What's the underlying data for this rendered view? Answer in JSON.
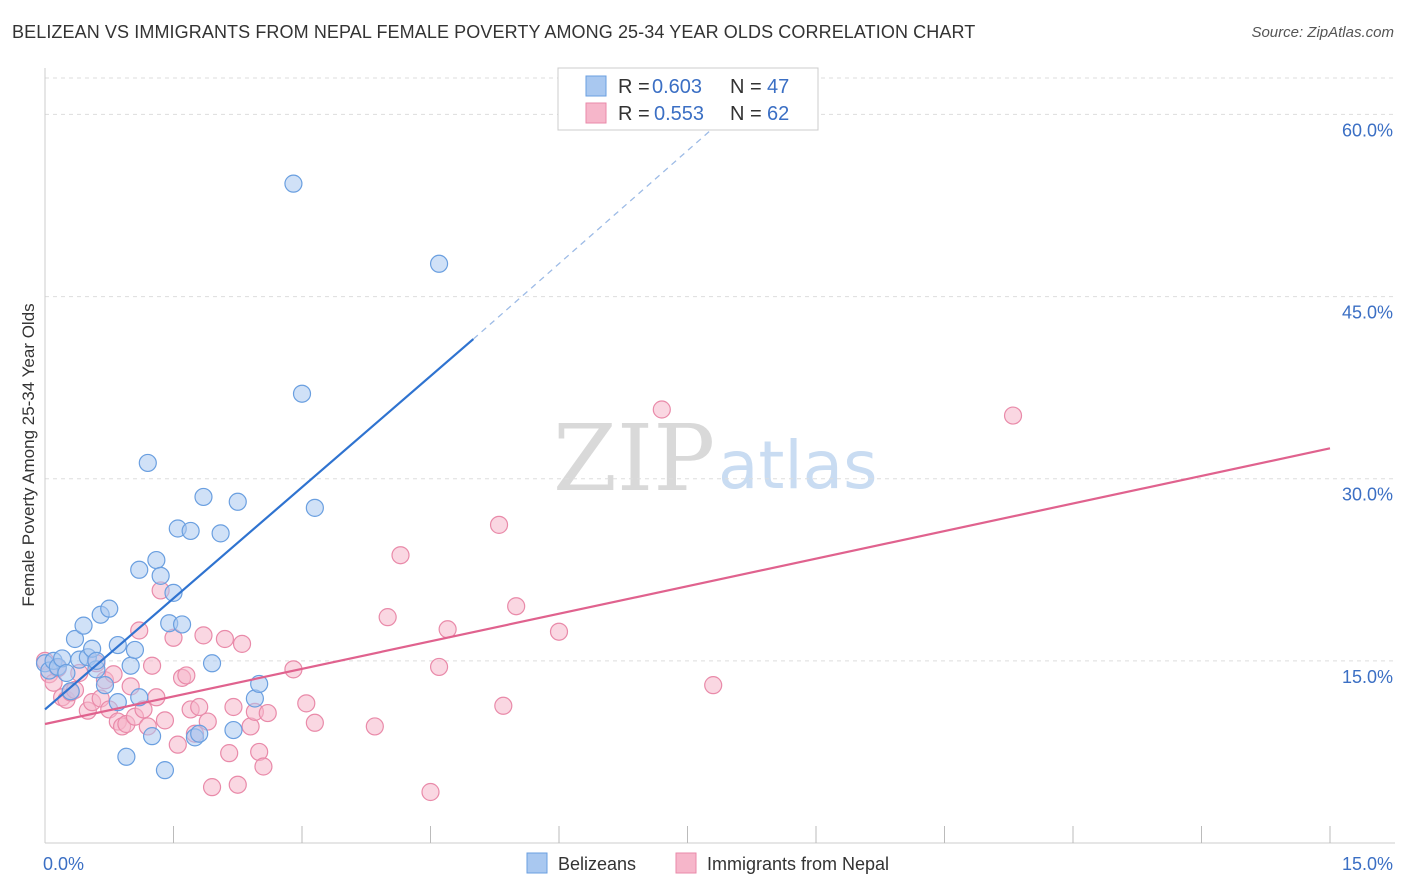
{
  "title": "BELIZEAN VS IMMIGRANTS FROM NEPAL FEMALE POVERTY AMONG 25-34 YEAR OLDS CORRELATION CHART",
  "source": "Source: ZipAtlas.com",
  "watermark": {
    "zip": "ZIP",
    "atlas": "atlas"
  },
  "legend": {
    "entries": [
      {
        "r_label": "R =",
        "r_value": "0.603",
        "n_label": "N =",
        "n_value": "47"
      },
      {
        "r_label": "R =",
        "r_value": "0.553",
        "n_label": "N =",
        "n_value": "62"
      }
    ]
  },
  "bottom_legend": [
    "Belizeans",
    "Immigrants from Nepal"
  ],
  "colors": {
    "blue_fill": "#a9c8f0",
    "blue_stroke": "#6a9fe0",
    "blue_line": "#2f73d0",
    "pink_fill": "#f6b6ca",
    "pink_stroke": "#e98aa9",
    "pink_line": "#e0628e",
    "grid": "#dddddd",
    "axis_text": "#3b6fc4"
  },
  "chart_data": {
    "type": "scatter",
    "title": "BELIZEAN VS IMMIGRANTS FROM NEPAL FEMALE POVERTY AMONG 25-34 YEAR OLDS CORRELATION CHART",
    "xlabel": "",
    "ylabel": "Female Poverty Among 25-34 Year Olds",
    "xlim": [
      0,
      15
    ],
    "ylim": [
      0,
      63
    ],
    "x_tick_labels": [
      "0.0%",
      "15.0%"
    ],
    "y_ticks": [
      15,
      30,
      45,
      60
    ],
    "y_tick_labels": [
      "15.0%",
      "30.0%",
      "45.0%",
      "60.0%"
    ],
    "grid": true,
    "series": [
      {
        "name": "Belizeans",
        "r": 0.603,
        "n": 47,
        "trend": {
          "x0": 0.0,
          "y0": 11.0,
          "x1": 5.0,
          "y1": 41.5,
          "dash_to_x": 7.9,
          "dash_to_y": 59.5
        },
        "points": [
          [
            0.0,
            14.8
          ],
          [
            0.05,
            14.2
          ],
          [
            0.1,
            15.0
          ],
          [
            0.15,
            14.5
          ],
          [
            0.2,
            15.2
          ],
          [
            0.25,
            14.0
          ],
          [
            0.3,
            12.5
          ],
          [
            0.35,
            16.8
          ],
          [
            0.4,
            15.1
          ],
          [
            0.45,
            17.9
          ],
          [
            0.5,
            15.3
          ],
          [
            0.55,
            16.0
          ],
          [
            0.6,
            14.3
          ],
          [
            0.65,
            18.8
          ],
          [
            0.7,
            13.0
          ],
          [
            0.75,
            19.3
          ],
          [
            0.85,
            11.6
          ],
          [
            0.85,
            16.3
          ],
          [
            0.95,
            7.1
          ],
          [
            1.0,
            14.6
          ],
          [
            1.05,
            15.9
          ],
          [
            1.1,
            22.5
          ],
          [
            1.1,
            12.0
          ],
          [
            1.2,
            31.3
          ],
          [
            1.25,
            8.8
          ],
          [
            1.3,
            23.3
          ],
          [
            1.35,
            22.0
          ],
          [
            1.4,
            6.0
          ],
          [
            1.45,
            18.1
          ],
          [
            1.5,
            20.6
          ],
          [
            1.55,
            25.9
          ],
          [
            1.6,
            18.0
          ],
          [
            1.7,
            25.7
          ],
          [
            1.75,
            8.7
          ],
          [
            1.8,
            9.0
          ],
          [
            1.85,
            28.5
          ],
          [
            1.95,
            14.8
          ],
          [
            2.05,
            25.5
          ],
          [
            2.2,
            9.3
          ],
          [
            2.25,
            28.1
          ],
          [
            2.45,
            11.9
          ],
          [
            2.5,
            13.1
          ],
          [
            2.9,
            54.3
          ],
          [
            3.0,
            37.0
          ],
          [
            3.15,
            27.6
          ],
          [
            4.6,
            47.7
          ],
          [
            0.6,
            15.0
          ]
        ]
      },
      {
        "name": "Immigrants from Nepal",
        "r": 0.553,
        "n": 62,
        "trend": {
          "x0": 0.0,
          "y0": 9.8,
          "x1": 15.0,
          "y1": 32.5
        },
        "points": [
          [
            0.0,
            15.0
          ],
          [
            0.05,
            13.9
          ],
          [
            0.1,
            13.2
          ],
          [
            0.15,
            14.4
          ],
          [
            0.2,
            12.0
          ],
          [
            0.25,
            11.8
          ],
          [
            0.3,
            12.4
          ],
          [
            0.35,
            12.6
          ],
          [
            0.4,
            14.0
          ],
          [
            0.5,
            10.9
          ],
          [
            0.55,
            11.6
          ],
          [
            0.6,
            14.8
          ],
          [
            0.65,
            11.9
          ],
          [
            0.7,
            13.4
          ],
          [
            0.75,
            11.0
          ],
          [
            0.8,
            13.9
          ],
          [
            0.85,
            10.0
          ],
          [
            0.9,
            9.6
          ],
          [
            0.95,
            9.8
          ],
          [
            1.0,
            12.9
          ],
          [
            1.05,
            10.4
          ],
          [
            1.1,
            17.5
          ],
          [
            1.15,
            11.0
          ],
          [
            1.2,
            9.6
          ],
          [
            1.25,
            14.6
          ],
          [
            1.3,
            12.0
          ],
          [
            1.35,
            20.8
          ],
          [
            1.4,
            10.1
          ],
          [
            1.5,
            16.9
          ],
          [
            1.55,
            8.1
          ],
          [
            1.6,
            13.6
          ],
          [
            1.65,
            13.8
          ],
          [
            1.7,
            11.0
          ],
          [
            1.75,
            9.0
          ],
          [
            1.8,
            11.2
          ],
          [
            1.85,
            17.1
          ],
          [
            1.9,
            10.0
          ],
          [
            1.95,
            4.6
          ],
          [
            2.1,
            16.8
          ],
          [
            2.15,
            7.4
          ],
          [
            2.2,
            11.2
          ],
          [
            2.25,
            4.8
          ],
          [
            2.3,
            16.4
          ],
          [
            2.4,
            9.6
          ],
          [
            2.45,
            10.8
          ],
          [
            2.5,
            7.5
          ],
          [
            2.55,
            6.3
          ],
          [
            2.6,
            10.7
          ],
          [
            2.9,
            14.3
          ],
          [
            3.05,
            11.5
          ],
          [
            3.15,
            9.9
          ],
          [
            3.85,
            9.6
          ],
          [
            4.0,
            18.6
          ],
          [
            4.15,
            23.7
          ],
          [
            4.5,
            4.2
          ],
          [
            4.6,
            14.5
          ],
          [
            4.7,
            17.6
          ],
          [
            5.3,
            26.2
          ],
          [
            5.35,
            11.3
          ],
          [
            5.5,
            19.5
          ],
          [
            6.0,
            17.4
          ],
          [
            7.2,
            35.7
          ]
        ],
        "extra_points": [
          [
            7.8,
            13.0
          ],
          [
            11.3,
            35.2
          ]
        ]
      }
    ]
  }
}
